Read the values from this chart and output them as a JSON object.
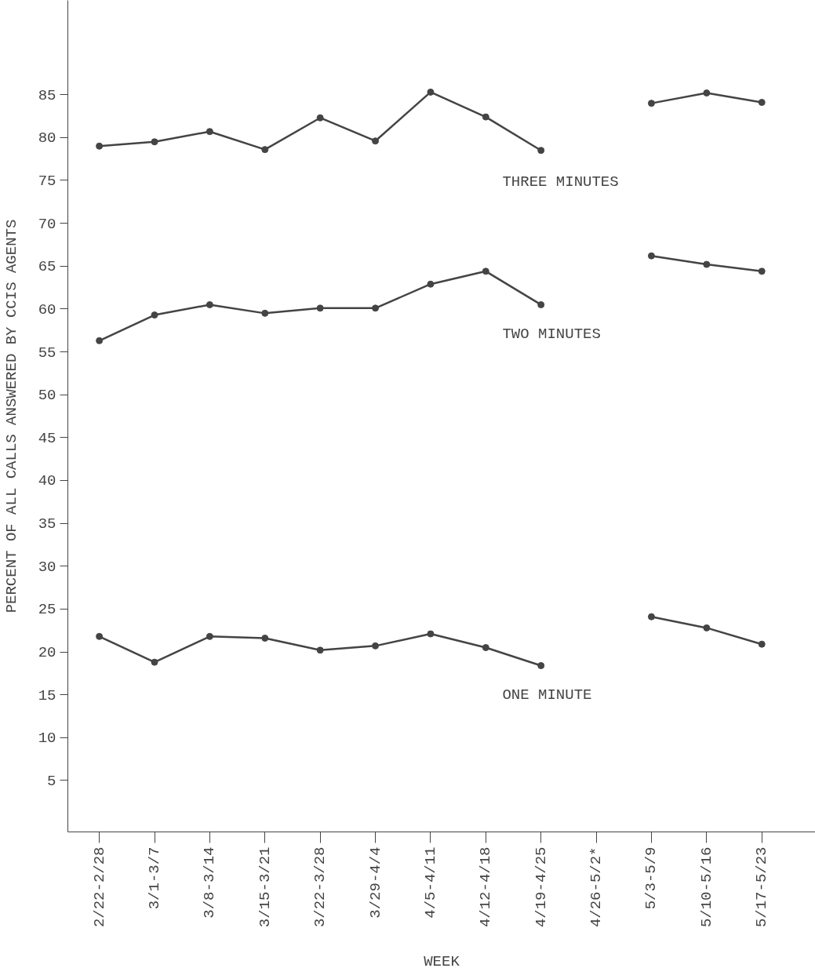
{
  "chart_data": {
    "type": "line",
    "xlabel": "WEEK",
    "ylabel": "PERCENT OF ALL CALLS ANSWERED BY CCIS AGENTS",
    "categories": [
      "2/22-2/28",
      "3/1-3/7",
      "3/8-3/14",
      "3/15-3/21",
      "3/22-3/28",
      "3/29-4/4",
      "4/5-4/11",
      "4/12-4/18",
      "4/19-4/25",
      "4/26-5/2*",
      "5/3-5/9",
      "5/10-5/16",
      "5/17-5/23"
    ],
    "series": [
      {
        "name": "THREE MINUTES",
        "color": "#444444",
        "values": [
          79.0,
          79.5,
          80.7,
          78.6,
          82.3,
          79.6,
          85.3,
          82.4,
          78.5,
          null,
          84.0,
          85.2,
          84.1
        ]
      },
      {
        "name": "TWO MINUTES",
        "color": "#444444",
        "values": [
          56.3,
          59.3,
          60.5,
          59.5,
          60.1,
          60.1,
          62.9,
          64.4,
          60.5,
          null,
          66.2,
          65.2,
          64.4
        ]
      },
      {
        "name": "ONE MINUTE",
        "color": "#444444",
        "values": [
          21.8,
          18.8,
          21.8,
          21.6,
          20.2,
          20.7,
          22.1,
          20.5,
          18.4,
          null,
          24.1,
          22.8,
          20.9
        ]
      }
    ],
    "ylim": [
      -1,
      96
    ],
    "yticks": [
      5,
      10,
      15,
      20,
      25,
      30,
      35,
      40,
      45,
      50,
      55,
      60,
      65,
      70,
      75,
      80,
      85
    ],
    "grid": false,
    "marker": "circle",
    "line_style": "solid"
  }
}
